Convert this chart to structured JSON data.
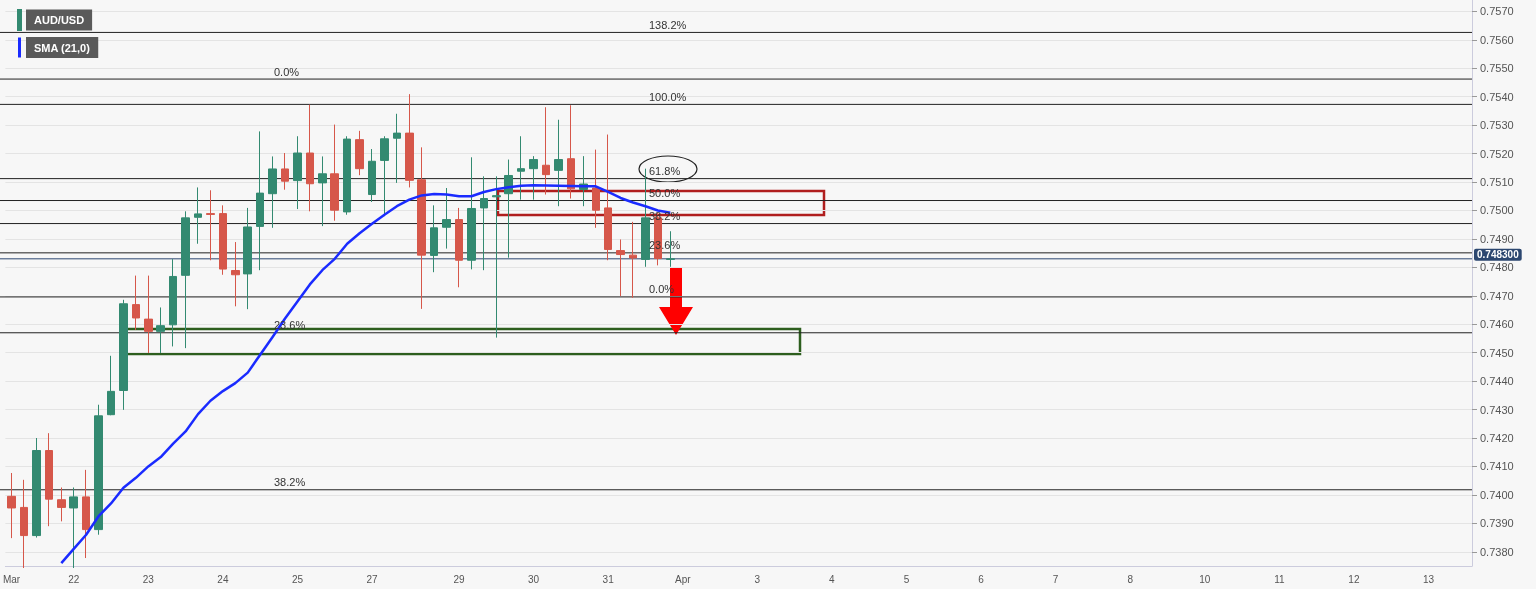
{
  "chart_data": {
    "type": "candlestick",
    "categories": [
      "Mar",
      null,
      null,
      null,
      null,
      "22",
      null,
      null,
      null,
      null,
      null,
      "23",
      null,
      null,
      null,
      null,
      null,
      "24",
      null,
      null,
      null,
      null,
      null,
      "25",
      null,
      null,
      null,
      null,
      null,
      "27",
      null,
      null,
      null,
      null,
      null,
      null,
      "29",
      null,
      null,
      null,
      null,
      null,
      "30",
      null,
      null,
      null,
      null,
      null,
      "31",
      null,
      null,
      null,
      null,
      null,
      "Apr",
      null,
      null,
      null,
      null,
      null,
      "3",
      null,
      null,
      null,
      null,
      null,
      "4",
      null,
      null,
      null,
      null,
      null,
      "5",
      null,
      null,
      null,
      null,
      null,
      "6",
      null,
      null,
      null,
      null,
      null,
      "7",
      null,
      null,
      null,
      null,
      null,
      "8",
      null,
      null,
      null,
      null,
      null,
      "10",
      null,
      null,
      null,
      null,
      null,
      "11",
      null,
      null,
      null,
      null,
      null,
      "12",
      null,
      null,
      null,
      null,
      null,
      "13",
      null,
      null,
      null
    ],
    "series": [
      {
        "name": "AUD/USD",
        "type": "candlestick",
        "color": "#338a71",
        "colors": [
          "#d6574a",
          "#d6574a",
          "#338a71",
          "#d6574a",
          "#d6574a",
          "#338a71",
          "#d6574a",
          "#338a71",
          "#338a71",
          "#338a71",
          "#d6574a",
          "#d6574a",
          "#338a71",
          "#338a71",
          "#338a71",
          "#338a71",
          "#d6574a",
          "#d6574a",
          "#d6574a",
          "#338a71",
          "#338a71",
          "#338a71",
          "#d6574a",
          "#338a71",
          "#d6574a",
          "#338a71",
          "#d6574a",
          "#338a71",
          "#d6574a",
          "#338a71",
          "#338a71",
          "#338a71",
          "#d6574a",
          "#d6574a",
          "#338a71",
          "#338a71",
          "#d6574a",
          "#338a71",
          "#338a71",
          "#338a71",
          "#338a71",
          "#338a71",
          "#338a71",
          "#d6574a",
          "#338a71",
          "#d6574a",
          "#338a71",
          "#d6574a",
          "#d6574a",
          "#d6574a",
          "#d6574a",
          "#338a71",
          "#d6574a",
          "#338a71",
          null,
          null,
          null,
          null,
          null,
          null,
          null,
          null,
          null,
          null,
          null,
          null,
          null,
          null,
          null,
          null,
          null,
          null,
          null,
          null,
          null,
          null,
          null,
          null,
          null,
          null,
          null,
          null,
          null,
          null,
          null,
          null,
          null,
          null,
          null,
          null,
          null,
          null,
          null,
          null,
          null,
          null,
          null,
          null,
          null,
          null,
          null,
          null,
          null,
          null,
          null,
          null,
          null,
          null,
          null,
          null,
          null,
          null,
          null,
          null,
          null,
          null,
          null,
          null
        ],
        "ohlc": [
          [
            0.73995,
            0.74077,
            0.73848,
            0.73954
          ],
          [
            0.73956,
            0.74053,
            0.73743,
            0.73857
          ],
          [
            0.73857,
            0.742,
            0.7385,
            0.74156
          ],
          [
            0.74156,
            0.74217,
            0.7389,
            0.73985
          ],
          [
            0.73983,
            0.74026,
            0.73907,
            0.73956
          ],
          [
            0.73954,
            0.74026,
            0.73743,
            0.73993
          ],
          [
            0.73993,
            0.74088,
            0.73778,
            0.73878
          ],
          [
            0.73878,
            0.74317,
            0.7386,
            0.74278
          ],
          [
            0.74282,
            0.74489,
            0.7428,
            0.74364
          ],
          [
            0.74367,
            0.74686,
            0.74299,
            0.74672
          ],
          [
            0.74669,
            0.74771,
            0.7458,
            0.74622
          ],
          [
            0.74618,
            0.74771,
            0.74499,
            0.74575
          ],
          [
            0.74575,
            0.74659,
            0.74499,
            0.74595
          ],
          [
            0.74598,
            0.74829,
            0.74522,
            0.74768
          ],
          [
            0.74772,
            0.74997,
            0.74516,
            0.74974
          ],
          [
            0.74976,
            0.75081,
            0.74883,
            0.74988
          ],
          [
            0.74989,
            0.75071,
            0.74825,
            0.74986
          ],
          [
            0.74989,
            0.75018,
            0.74774,
            0.74794
          ],
          [
            0.74789,
            0.74889,
            0.74663,
            0.74774
          ],
          [
            0.74777,
            0.75009,
            0.74653,
            0.74942
          ],
          [
            0.74944,
            0.75278,
            0.7479,
            0.75061
          ],
          [
            0.75059,
            0.7519,
            0.74939,
            0.75146
          ],
          [
            0.75146,
            0.75202,
            0.75073,
            0.75103
          ],
          [
            0.75105,
            0.75261,
            0.75005,
            0.75202
          ],
          [
            0.75202,
            0.75372,
            0.74997,
            0.75094
          ],
          [
            0.75097,
            0.7519,
            0.74945,
            0.75129
          ],
          [
            0.75129,
            0.75302,
            0.74964,
            0.75001
          ],
          [
            0.74995,
            0.75261,
            0.74985,
            0.75251
          ],
          [
            0.75249,
            0.7528,
            0.75124,
            0.75147
          ],
          [
            0.75056,
            0.75216,
            0.7503,
            0.75173
          ],
          [
            0.75176,
            0.75261,
            0.7498,
            0.75252
          ],
          [
            0.75254,
            0.7534,
            0.75097,
            0.75272
          ],
          [
            0.75272,
            0.75409,
            0.75081,
            0.75106
          ],
          [
            0.75108,
            0.75222,
            0.74654,
            0.74843
          ],
          [
            0.74842,
            0.75018,
            0.74783,
            0.74939
          ],
          [
            0.74941,
            0.75079,
            0.74866,
            0.74968
          ],
          [
            0.74968,
            0.75009,
            0.7473,
            0.74825
          ],
          [
            0.74825,
            0.75187,
            0.74793,
            0.75007
          ],
          [
            0.75009,
            0.7512,
            0.7479,
            0.75042
          ],
          [
            0.75048,
            0.7512,
            0.74553,
            0.75052
          ],
          [
            0.75059,
            0.75179,
            0.74834,
            0.75123
          ],
          [
            0.75138,
            0.75261,
            0.75038,
            0.75147
          ],
          [
            0.75147,
            0.75191,
            0.75038,
            0.75179
          ],
          [
            0.75159,
            0.75363,
            0.75056,
            0.75126
          ],
          [
            0.75141,
            0.75319,
            0.75015,
            0.75179
          ],
          [
            0.75182,
            0.7537,
            0.75042,
            0.75076
          ],
          [
            0.75074,
            0.75191,
            0.75015,
            0.75093
          ],
          [
            0.75079,
            0.75214,
            0.74939,
            0.75001
          ],
          [
            0.75009,
            0.75267,
            0.74825,
            0.74863
          ],
          [
            0.74859,
            0.74898,
            0.74699,
            0.74845
          ],
          [
            0.74843,
            0.7496,
            0.74693,
            0.74833
          ],
          [
            0.74828,
            0.75147,
            0.74802,
            0.74974
          ],
          [
            0.74974,
            0.74992,
            0.74807,
            0.74831
          ],
          [
            0.74828,
            0.74927,
            0.74802,
            0.7483
          ],
          null,
          null,
          null,
          null,
          null,
          null,
          null,
          null,
          null,
          null,
          null,
          null,
          null,
          null,
          null,
          null,
          null,
          null,
          null,
          null,
          null,
          null,
          null,
          null,
          null,
          null,
          null,
          null,
          null,
          null,
          null,
          null,
          null,
          null,
          null,
          null,
          null,
          null,
          null,
          null,
          null,
          null,
          null,
          null,
          null,
          null,
          null,
          null,
          null,
          null,
          null,
          null,
          null,
          null,
          null,
          null,
          null,
          null,
          null,
          null,
          null,
          null,
          null,
          null
        ]
      },
      {
        "name": "SMA (21,0)",
        "type": "line",
        "color": "#1a2bff",
        "values": [
          null,
          null,
          null,
          null,
          0.7376,
          0.7381,
          0.7386,
          0.73925,
          0.7397,
          0.74025,
          0.7406,
          0.741,
          0.74133,
          0.7418,
          0.74223,
          0.74284,
          0.74331,
          0.74365,
          0.74393,
          0.7443,
          0.74493,
          0.74555,
          0.7462,
          0.7468,
          0.7474,
          0.7479,
          0.7483,
          0.74883,
          0.7492,
          0.74953,
          0.74985,
          0.75015,
          0.75038,
          0.75053,
          0.75058,
          0.75056,
          0.7505,
          0.7505,
          0.75065,
          0.75075,
          0.75082,
          0.75087,
          0.75089,
          0.75088,
          0.75087,
          0.75086,
          0.75085,
          0.75085,
          0.75065,
          0.75044,
          0.75028,
          0.75015,
          0.75,
          0.74992,
          null,
          null,
          null,
          null,
          null,
          null,
          null,
          null,
          null,
          null,
          null,
          null,
          null,
          null,
          null,
          null,
          null,
          null,
          null,
          null,
          null,
          null,
          null,
          null,
          null,
          null,
          null,
          null,
          null,
          null,
          null,
          null,
          null,
          null,
          null,
          null,
          null,
          null,
          null,
          null,
          null,
          null,
          null,
          null,
          null,
          null,
          null,
          null,
          null,
          null,
          null,
          null,
          null,
          null,
          null,
          null,
          null,
          null,
          null,
          null,
          null,
          null,
          null,
          null
        ]
      }
    ],
    "ylim": [
      0.7375,
      0.7574
    ],
    "yticks": [
      {
        "value": 0.738,
        "label": "0.7380"
      },
      {
        "value": 0.739,
        "label": "0.7390"
      },
      {
        "value": 0.74,
        "label": "0.7400"
      },
      {
        "value": 0.741,
        "label": "0.7410"
      },
      {
        "value": 0.742,
        "label": "0.7420"
      },
      {
        "value": 0.743,
        "label": "0.7430"
      },
      {
        "value": 0.744,
        "label": "0.7440"
      },
      {
        "value": 0.745,
        "label": "0.7450"
      },
      {
        "value": 0.746,
        "label": "0.7460"
      },
      {
        "value": 0.747,
        "label": "0.7470"
      },
      {
        "value": 0.748,
        "label": "0.7480"
      },
      {
        "value": 0.749,
        "label": "0.7490"
      },
      {
        "value": 0.75,
        "label": "0.7500"
      },
      {
        "value": 0.751,
        "label": "0.7510"
      },
      {
        "value": 0.752,
        "label": "0.7520"
      },
      {
        "value": 0.753,
        "label": "0.7530"
      },
      {
        "value": 0.754,
        "label": "0.7540"
      },
      {
        "value": 0.755,
        "label": "0.7550"
      },
      {
        "value": 0.756,
        "label": "0.7560"
      },
      {
        "value": 0.757,
        "label": "0.7570"
      }
    ],
    "ref_lines": [
      {
        "axis": "y",
        "value": 0.7483,
        "label": "0.748300",
        "color": "#2c4770"
      },
      {
        "axis": "y",
        "value": 0.75462,
        "color": "#222222"
      },
      {
        "axis": "y",
        "value": 0.7457,
        "color": "#222222"
      },
      {
        "axis": "y",
        "value": 0.74018,
        "color": "#222222"
      },
      {
        "axis": "y",
        "value": 0.75626,
        "color": "#222222"
      },
      {
        "axis": "y",
        "value": 0.75373,
        "color": "#222222"
      },
      {
        "axis": "y",
        "value": 0.75112,
        "color": "#222222"
      },
      {
        "axis": "y",
        "value": 0.75035,
        "color": "#222222"
      },
      {
        "axis": "y",
        "value": 0.74954,
        "color": "#222222"
      },
      {
        "axis": "y",
        "value": 0.74851,
        "color": "#222222"
      },
      {
        "axis": "y",
        "value": 0.74696,
        "color": "#222222"
      }
    ],
    "annotations": [
      "0.0%",
      "23.6%",
      "38.2%",
      "138.2%",
      "100.0%",
      "61.8%",
      "50.0%",
      "38.2%",
      "23.6%",
      "0.0%"
    ],
    "grid": "y",
    "legend": "top left"
  }
}
